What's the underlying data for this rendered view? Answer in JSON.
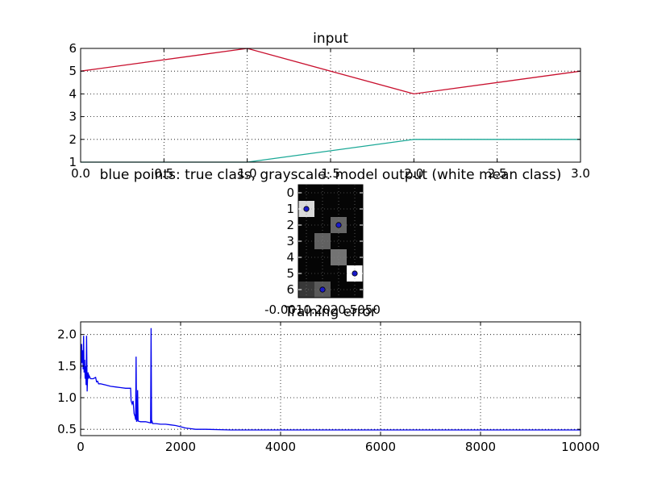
{
  "chart_data": [
    {
      "type": "line",
      "title": "input",
      "xlabel": "",
      "ylabel": "",
      "xlim": [
        0.0,
        3.0
      ],
      "ylim": [
        1,
        6
      ],
      "xticks": [
        0.0,
        0.5,
        1.0,
        1.5,
        2.0,
        2.5,
        3.0
      ],
      "xtick_labels": [
        "0.0",
        "0.5",
        "1.0",
        "1.5",
        "2.0",
        "2.5",
        "3.0"
      ],
      "yticks": [
        1,
        2,
        3,
        4,
        5,
        6
      ],
      "ytick_labels": [
        "1",
        "2",
        "3",
        "4",
        "5",
        "6"
      ],
      "grid": true,
      "x": [
        0,
        1,
        2,
        3
      ],
      "series": [
        {
          "values": [
            5,
            6,
            4,
            5
          ],
          "color": "#c8102e"
        },
        {
          "values": [
            1,
            1,
            2,
            2
          ],
          "color": "#1aa896"
        }
      ]
    },
    {
      "type": "heatmap",
      "title": "blue points: true class, grayscale: model output (white mean class)",
      "rows": 7,
      "cols": 4,
      "yticks": [
        0,
        1,
        2,
        3,
        4,
        5,
        6
      ],
      "ytick_labels": [
        "0",
        "1",
        "2",
        "3",
        "4",
        "5",
        "6"
      ],
      "xtick_labels_overlapping": "-0.0010.2020.5050",
      "grid": true,
      "cells": [
        [
          0.02,
          0.02,
          0.02,
          0.02
        ],
        [
          0.85,
          0.02,
          0.02,
          0.02
        ],
        [
          0.02,
          0.02,
          0.4,
          0.02
        ],
        [
          0.02,
          0.38,
          0.02,
          0.02
        ],
        [
          0.02,
          0.02,
          0.45,
          0.02
        ],
        [
          0.02,
          0.02,
          0.02,
          1.0
        ],
        [
          0.22,
          0.35,
          0.02,
          0.02
        ]
      ],
      "true_class_points": [
        {
          "row": 1,
          "col": 0
        },
        {
          "row": 2,
          "col": 2
        },
        {
          "row": 5,
          "col": 3
        },
        {
          "row": 6,
          "col": 1
        }
      ],
      "point_color": "#1a1acc"
    },
    {
      "type": "line",
      "title": "Training error",
      "xlabel": "",
      "ylabel": "",
      "xlim": [
        0,
        10000
      ],
      "ylim": [
        0.4,
        2.2
      ],
      "xticks": [
        0,
        2000,
        4000,
        6000,
        8000,
        10000
      ],
      "xtick_labels": [
        "0",
        "2000",
        "4000",
        "6000",
        "8000",
        "10000"
      ],
      "yticks": [
        0.5,
        1.0,
        1.5,
        2.0
      ],
      "ytick_labels": [
        "0.5",
        "1.0",
        "1.5",
        "2.0"
      ],
      "grid": true,
      "series": [
        {
          "color": "#0000ee",
          "x": [
            0,
            20,
            30,
            40,
            50,
            60,
            70,
            80,
            90,
            100,
            110,
            120,
            130,
            140,
            150,
            160,
            170,
            200,
            250,
            300,
            320,
            340,
            360,
            400,
            500,
            600,
            700,
            800,
            900,
            1000,
            1010,
            1030,
            1050,
            1070,
            1080,
            1090,
            1100,
            1110,
            1120,
            1130,
            1140,
            1150,
            1200,
            1300,
            1400,
            1410,
            1420,
            1430,
            1440,
            1500,
            1600,
            1700,
            1800,
            1900,
            2000,
            2100,
            2200,
            2300,
            2500,
            3000,
            4000,
            5000,
            6000,
            7000,
            8000,
            9000,
            10000
          ],
          "y": [
            1.3,
            1.85,
            1.55,
            1.75,
            1.45,
            1.98,
            1.4,
            1.6,
            1.3,
            1.5,
            1.2,
            1.98,
            1.1,
            1.35,
            1.4,
            1.3,
            1.35,
            1.3,
            1.3,
            1.32,
            1.25,
            1.26,
            1.22,
            1.22,
            1.2,
            1.18,
            1.17,
            1.16,
            1.15,
            1.15,
            0.95,
            0.9,
            0.95,
            0.75,
            0.72,
            0.7,
            0.65,
            1.65,
            0.62,
            0.65,
            1.12,
            0.63,
            0.62,
            0.62,
            0.6,
            2.1,
            0.6,
            0.62,
            0.59,
            0.59,
            0.58,
            0.58,
            0.57,
            0.56,
            0.54,
            0.52,
            0.51,
            0.5,
            0.5,
            0.49,
            0.49,
            0.49,
            0.49,
            0.49,
            0.49,
            0.49,
            0.49
          ]
        }
      ]
    }
  ]
}
